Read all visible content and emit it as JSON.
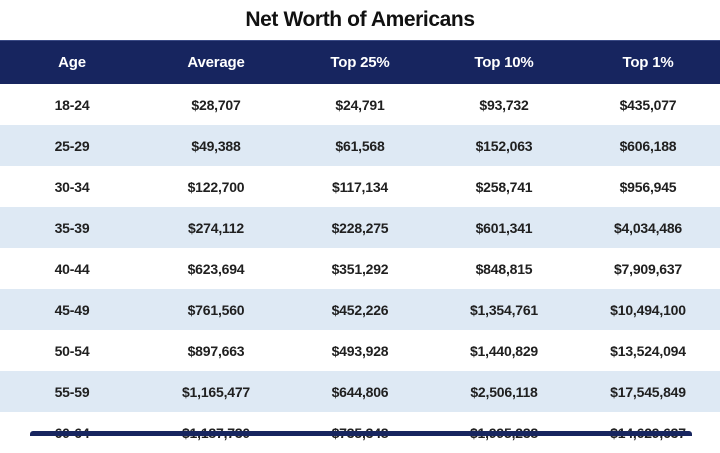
{
  "title": "Net Worth of Americans",
  "chart_data": {
    "type": "table",
    "title": "Net Worth of Americans",
    "columns": [
      "Age",
      "Average",
      "Top 25%",
      "Top 10%",
      "Top 1%"
    ],
    "rows": [
      [
        "18-24",
        "$28,707",
        "$24,791",
        "$93,732",
        "$435,077"
      ],
      [
        "25-29",
        "$49,388",
        "$61,568",
        "$152,063",
        "$606,188"
      ],
      [
        "30-34",
        "$122,700",
        "$117,134",
        "$258,741",
        "$956,945"
      ],
      [
        "35-39",
        "$274,112",
        "$228,275",
        "$601,341",
        "$4,034,486"
      ],
      [
        "40-44",
        "$623,694",
        "$351,292",
        "$848,815",
        "$7,909,637"
      ],
      [
        "45-49",
        "$761,560",
        "$452,226",
        "$1,354,761",
        "$10,494,100"
      ],
      [
        "50-54",
        "$897,663",
        "$493,928",
        "$1,440,829",
        "$13,524,094"
      ],
      [
        "55-59",
        "$1,165,477",
        "$644,806",
        "$2,506,118",
        "$17,545,849"
      ],
      [
        "60-64",
        "$1,187,730",
        "$735,348",
        "$1,995,238",
        "$14,629,637"
      ]
    ]
  },
  "colors": {
    "header_bg": "#17255F",
    "header_text": "#FFFFFF",
    "row_bg": "#FFFFFF",
    "row_alt_bg": "#DEE9F4",
    "cell_text": "#202020",
    "title_text": "#111111"
  }
}
